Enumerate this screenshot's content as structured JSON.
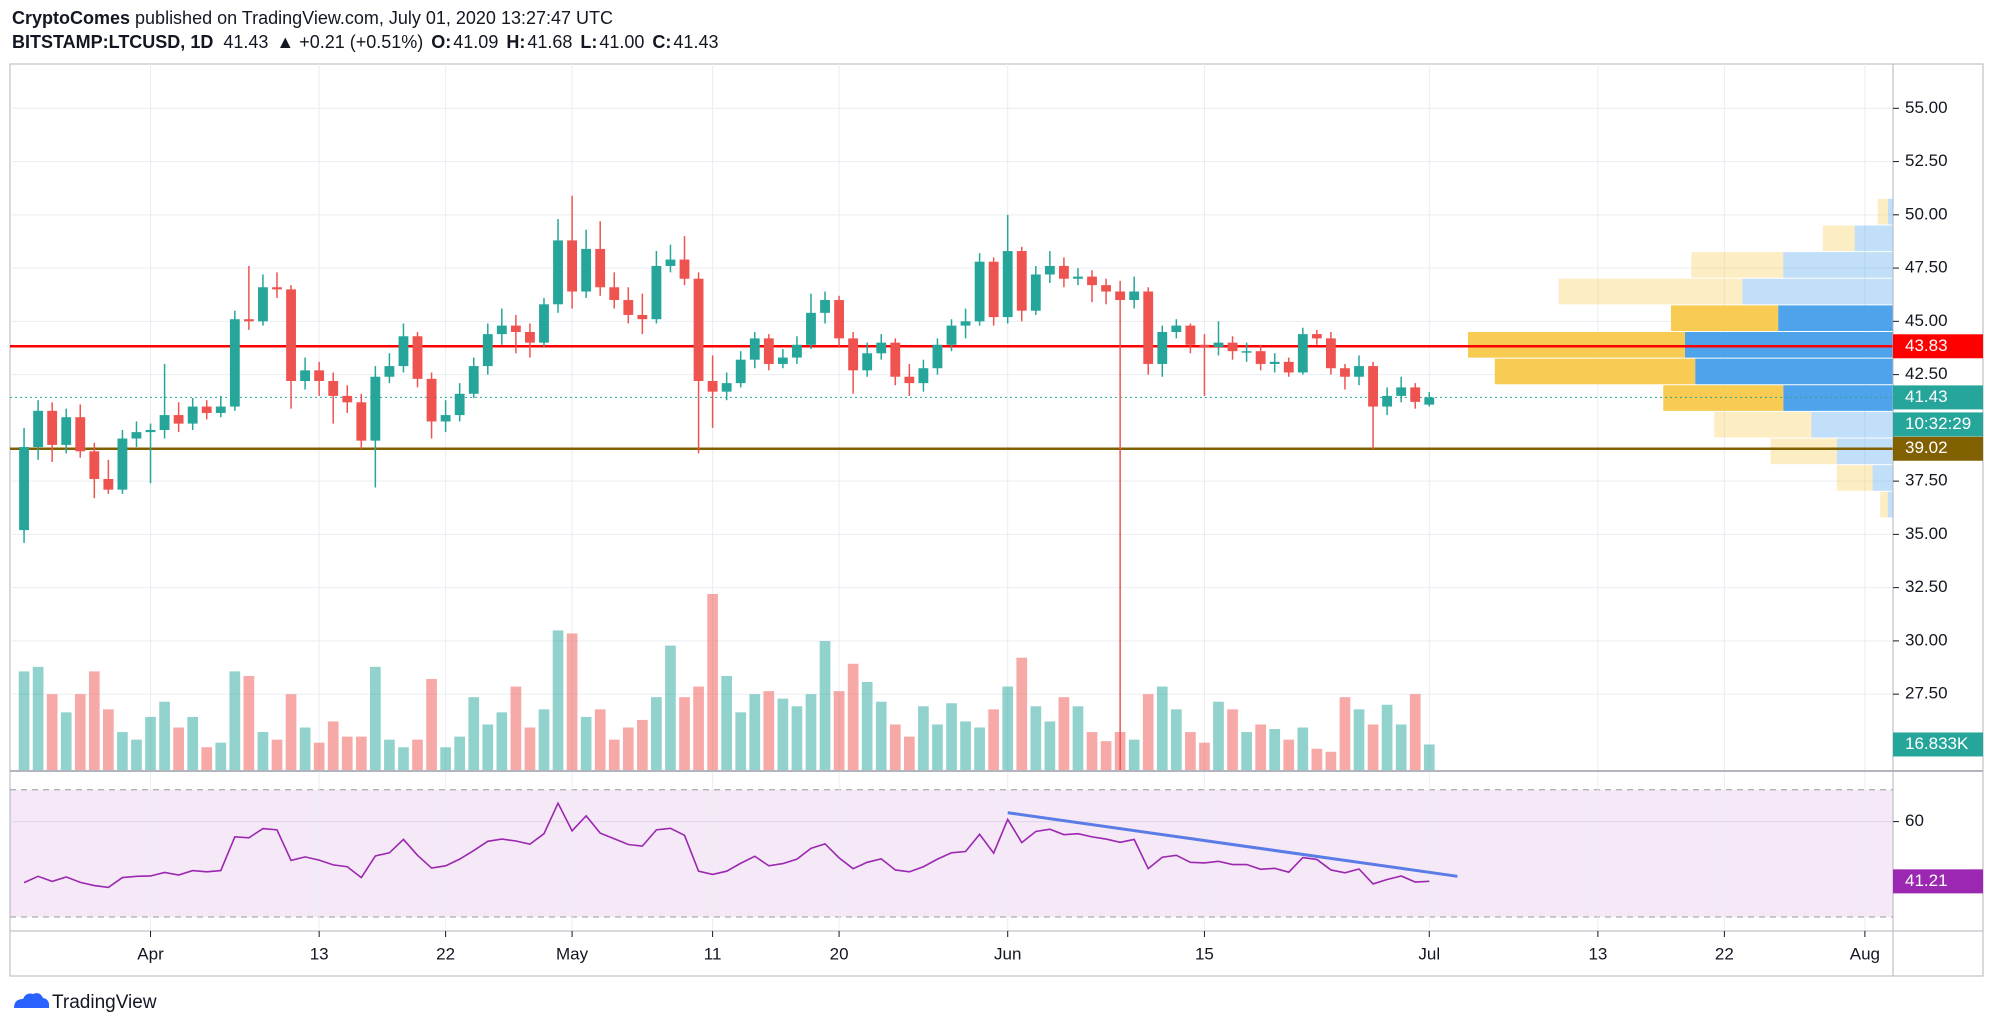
{
  "header": {
    "author": "CryptoComes",
    "published": "published on TradingView.com, July 01, 2020 13:27:47 UTC",
    "symbol": "BITSTAMP:LTCUSD, 1D",
    "last": "41.43",
    "change": "▲ +0.21 (+0.51%)",
    "ohlc": [
      {
        "key": "O:",
        "value": "41.09"
      },
      {
        "key": "H:",
        "value": "41.68"
      },
      {
        "key": "L:",
        "value": "41.00"
      },
      {
        "key": "C:",
        "value": "41.43"
      }
    ]
  },
  "footer": "TradingView",
  "chart_data": {
    "type": "candlestick",
    "x": [
      "2020-03-23",
      "2020-03-24",
      "2020-03-25",
      "2020-03-26",
      "2020-03-27",
      "2020-03-28",
      "2020-03-29",
      "2020-03-30",
      "2020-03-31",
      "2020-04-01",
      "2020-04-02",
      "2020-04-03",
      "2020-04-04",
      "2020-04-05",
      "2020-04-06",
      "2020-04-07",
      "2020-04-08",
      "2020-04-09",
      "2020-04-10",
      "2020-04-11",
      "2020-04-12",
      "2020-04-13",
      "2020-04-14",
      "2020-04-15",
      "2020-04-16",
      "2020-04-17",
      "2020-04-18",
      "2020-04-19",
      "2020-04-20",
      "2020-04-21",
      "2020-04-22",
      "2020-04-23",
      "2020-04-24",
      "2020-04-25",
      "2020-04-26",
      "2020-04-27",
      "2020-04-28",
      "2020-04-29",
      "2020-04-30",
      "2020-05-01",
      "2020-05-02",
      "2020-05-03",
      "2020-05-04",
      "2020-05-05",
      "2020-05-06",
      "2020-05-07",
      "2020-05-08",
      "2020-05-09",
      "2020-05-10",
      "2020-05-11",
      "2020-05-12",
      "2020-05-13",
      "2020-05-14",
      "2020-05-15",
      "2020-05-16",
      "2020-05-17",
      "2020-05-18",
      "2020-05-19",
      "2020-05-20",
      "2020-05-21",
      "2020-05-22",
      "2020-05-23",
      "2020-05-24",
      "2020-05-25",
      "2020-05-26",
      "2020-05-27",
      "2020-05-28",
      "2020-05-29",
      "2020-05-30",
      "2020-05-31",
      "2020-06-01",
      "2020-06-02",
      "2020-06-03",
      "2020-06-04",
      "2020-06-05",
      "2020-06-06",
      "2020-06-07",
      "2020-06-08",
      "2020-06-09",
      "2020-06-10",
      "2020-06-11",
      "2020-06-12",
      "2020-06-13",
      "2020-06-14",
      "2020-06-15",
      "2020-06-16",
      "2020-06-17",
      "2020-06-18",
      "2020-06-19",
      "2020-06-20",
      "2020-06-21",
      "2020-06-22",
      "2020-06-23",
      "2020-06-24",
      "2020-06-25",
      "2020-06-26",
      "2020-06-27",
      "2020-06-28",
      "2020-06-29",
      "2020-06-30",
      "2020-07-01"
    ],
    "open": [
      35.2,
      39.1,
      40.8,
      39.2,
      40.5,
      38.9,
      37.6,
      37.1,
      39.5,
      39.8,
      39.9,
      40.6,
      40.2,
      41.0,
      40.7,
      41.0,
      45.1,
      45.0,
      46.6,
      46.5,
      42.2,
      42.7,
      42.2,
      41.5,
      41.2,
      39.4,
      42.4,
      42.9,
      44.3,
      42.3,
      40.3,
      40.6,
      41.6,
      42.9,
      44.4,
      44.8,
      44.5,
      44.0,
      45.8,
      48.8,
      46.4,
      48.4,
      46.6,
      46.0,
      45.3,
      45.1,
      47.6,
      47.9,
      47.0,
      42.2,
      41.7,
      42.1,
      43.2,
      44.2,
      43.0,
      43.3,
      43.9,
      45.4,
      46.0,
      44.2,
      42.7,
      43.5,
      44.0,
      42.4,
      42.1,
      42.8,
      43.9,
      44.8,
      45.0,
      47.8,
      45.2,
      48.3,
      45.5,
      47.2,
      47.6,
      47.0,
      47.1,
      46.7,
      46.4,
      46.0,
      46.4,
      43.0,
      44.5,
      44.8,
      43.9,
      43.8,
      44.0,
      43.6,
      43.6,
      43.0,
      43.1,
      42.6,
      44.4,
      44.2,
      42.8,
      42.4,
      42.9,
      41.0,
      41.5,
      41.9,
      41.09
    ],
    "high": [
      40.0,
      41.3,
      41.2,
      40.9,
      41.1,
      39.3,
      38.5,
      39.9,
      40.3,
      40.2,
      43.0,
      41.2,
      41.4,
      41.3,
      41.5,
      45.5,
      47.6,
      47.2,
      47.3,
      46.7,
      43.3,
      43.1,
      42.6,
      42.0,
      41.6,
      42.9,
      43.5,
      44.9,
      44.5,
      42.6,
      41.3,
      42.1,
      43.3,
      44.9,
      45.6,
      45.3,
      44.9,
      46.1,
      49.8,
      50.9,
      49.3,
      49.7,
      47.3,
      46.6,
      46.3,
      48.3,
      48.6,
      49.0,
      47.3,
      43.4,
      42.6,
      43.6,
      44.5,
      44.4,
      43.7,
      44.3,
      46.3,
      46.4,
      46.2,
      44.5,
      44.0,
      44.4,
      44.2,
      43.0,
      43.2,
      44.2,
      45.1,
      45.6,
      48.2,
      48.0,
      50.0,
      48.5,
      47.6,
      48.3,
      48.0,
      47.5,
      47.4,
      47.0,
      46.9,
      47.1,
      46.6,
      44.8,
      45.1,
      44.9,
      44.4,
      45.0,
      44.3,
      44.0,
      43.9,
      43.5,
      43.3,
      44.7,
      44.6,
      44.5,
      43.0,
      43.4,
      43.1,
      41.9,
      42.4,
      42.1,
      41.68
    ],
    "low": [
      34.6,
      38.5,
      38.4,
      38.8,
      38.6,
      36.7,
      36.9,
      36.9,
      39.1,
      37.4,
      39.5,
      39.8,
      39.9,
      40.4,
      40.5,
      40.8,
      44.6,
      44.8,
      46.1,
      40.9,
      41.8,
      41.5,
      40.2,
      40.7,
      39.0,
      37.2,
      42.1,
      42.6,
      41.9,
      39.5,
      39.8,
      40.3,
      41.4,
      42.5,
      43.9,
      43.5,
      43.3,
      43.8,
      45.4,
      45.6,
      46.1,
      46.2,
      45.6,
      44.9,
      44.4,
      44.9,
      47.3,
      46.7,
      38.8,
      40.0,
      41.3,
      41.9,
      42.8,
      42.7,
      42.8,
      43.0,
      43.7,
      44.9,
      43.8,
      41.6,
      42.4,
      43.2,
      42.0,
      41.5,
      41.7,
      42.5,
      43.6,
      44.2,
      44.8,
      44.8,
      44.9,
      45.0,
      45.3,
      46.8,
      46.6,
      46.7,
      45.9,
      45.8,
      23.9,
      45.6,
      42.5,
      42.4,
      44.2,
      43.5,
      41.5,
      43.4,
      43.2,
      43.1,
      42.7,
      42.6,
      42.4,
      42.5,
      43.9,
      42.5,
      41.8,
      42.0,
      39.0,
      40.6,
      41.2,
      40.9,
      41.0
    ],
    "close": [
      39.1,
      40.8,
      39.2,
      40.5,
      38.9,
      37.6,
      37.1,
      39.5,
      39.8,
      39.9,
      40.6,
      40.2,
      41.0,
      40.7,
      41.0,
      45.1,
      45.0,
      46.6,
      46.5,
      42.2,
      42.7,
      42.2,
      41.5,
      41.2,
      39.4,
      42.4,
      42.9,
      44.3,
      42.3,
      40.3,
      40.6,
      41.6,
      42.9,
      44.4,
      44.8,
      44.5,
      44.0,
      45.8,
      48.8,
      46.4,
      48.4,
      46.6,
      46.0,
      45.3,
      45.1,
      47.6,
      47.9,
      47.0,
      42.2,
      41.7,
      42.1,
      43.2,
      44.2,
      43.0,
      43.3,
      43.9,
      45.4,
      46.0,
      44.2,
      42.7,
      43.5,
      44.0,
      42.4,
      42.1,
      42.8,
      43.9,
      44.8,
      45.0,
      47.8,
      45.2,
      48.3,
      45.5,
      47.2,
      47.6,
      47.0,
      47.1,
      46.7,
      46.4,
      46.0,
      46.4,
      43.0,
      44.5,
      44.8,
      43.9,
      43.8,
      44.0,
      43.6,
      43.6,
      43.0,
      43.1,
      42.6,
      44.4,
      44.2,
      42.8,
      42.4,
      42.9,
      41.0,
      41.5,
      41.9,
      41.22,
      41.43
    ],
    "up_color": "#26a69a",
    "down_color": "#ef5350",
    "xlim": [
      "2020-03-22",
      "2020-08-03"
    ],
    "xticks": [
      {
        "value": "2020-04-01",
        "label": "Apr"
      },
      {
        "value": "2020-04-13",
        "label": "13"
      },
      {
        "value": "2020-04-22",
        "label": "22"
      },
      {
        "value": "2020-05-01",
        "label": "May"
      },
      {
        "value": "2020-05-11",
        "label": "11"
      },
      {
        "value": "2020-05-20",
        "label": "20"
      },
      {
        "value": "2020-06-01",
        "label": "Jun"
      },
      {
        "value": "2020-06-15",
        "label": "15"
      },
      {
        "value": "2020-07-01",
        "label": "Jul"
      },
      {
        "value": "2020-07-13",
        "label": "13"
      },
      {
        "value": "2020-07-22",
        "label": "22"
      },
      {
        "value": "2020-08-01",
        "label": "Aug"
      }
    ],
    "ylim": [
      23.94,
      57.08
    ],
    "yticks": [
      {
        "value": 27.5,
        "label": "27.50"
      },
      {
        "value": 30,
        "label": "30.00"
      },
      {
        "value": 32.5,
        "label": "32.50"
      },
      {
        "value": 35,
        "label": "35.00"
      },
      {
        "value": 37.5,
        "label": "37.50"
      },
      {
        "value": 42.5,
        "label": "42.50"
      },
      {
        "value": 45,
        "label": "45.00"
      },
      {
        "value": 47.5,
        "label": "47.50"
      },
      {
        "value": 50,
        "label": "50.00"
      },
      {
        "value": 52.5,
        "label": "52.50"
      },
      {
        "value": 55,
        "label": "55.00"
      }
    ],
    "grid": true,
    "countdown": "10:32:29",
    "levels": [
      {
        "value": 43.83,
        "color": "#ff0000"
      },
      {
        "value": 39.02,
        "color": "#806000"
      }
    ],
    "volume": {
      "values": [
        65000,
        68000,
        50000,
        38000,
        50000,
        65000,
        40000,
        25000,
        20000,
        35000,
        45000,
        28000,
        35000,
        15000,
        18000,
        65000,
        62000,
        25000,
        20000,
        50000,
        28000,
        18000,
        32000,
        22000,
        22000,
        68000,
        20000,
        15000,
        20000,
        60000,
        15000,
        22000,
        48000,
        30000,
        38000,
        55000,
        28000,
        40000,
        92000,
        90000,
        35000,
        40000,
        20000,
        28000,
        33000,
        48000,
        82000,
        48000,
        55000,
        116000,
        62000,
        38000,
        50000,
        52000,
        47000,
        42000,
        50000,
        85000,
        52000,
        70000,
        58000,
        45000,
        30000,
        22000,
        42000,
        30000,
        44000,
        32000,
        28000,
        40000,
        55000,
        74000,
        42000,
        32000,
        48000,
        42000,
        25000,
        19000,
        25000,
        20000,
        50000,
        55000,
        40000,
        25000,
        18000,
        45000,
        40000,
        25000,
        30000,
        27000,
        20000,
        28000,
        14000,
        12000,
        48000,
        40000,
        30000,
        43000,
        30000,
        50000,
        16833
      ],
      "last_label": "16.833K"
    },
    "volume_profile": {
      "up_color": "#4ea3ea",
      "down_color": "#f8cb52",
      "rows": [
        {
          "low": 35.75,
          "high": 37.0,
          "up": 4,
          "down": 6,
          "value_area": false
        },
        {
          "low": 37.0,
          "high": 38.25,
          "up": 16,
          "down": 28,
          "value_area": false
        },
        {
          "low": 38.25,
          "high": 39.5,
          "up": 44,
          "down": 52,
          "value_area": false
        },
        {
          "low": 39.5,
          "high": 40.75,
          "up": 64,
          "down": 76,
          "value_area": false
        },
        {
          "low": 40.75,
          "high": 42.0,
          "up": 86,
          "down": 94,
          "value_area": true
        },
        {
          "low": 42.0,
          "high": 43.25,
          "up": 155,
          "down": 157,
          "value_area": true
        },
        {
          "low": 43.25,
          "high": 44.5,
          "up": 163,
          "down": 170,
          "value_area": true
        },
        {
          "low": 44.5,
          "high": 45.75,
          "up": 90,
          "down": 84,
          "value_area": true
        },
        {
          "low": 45.75,
          "high": 47.0,
          "up": 118,
          "down": 144,
          "value_area": false
        },
        {
          "low": 47.0,
          "high": 48.25,
          "up": 86,
          "down": 72,
          "value_area": false
        },
        {
          "low": 48.25,
          "high": 49.5,
          "up": 30,
          "down": 25,
          "value_area": false
        },
        {
          "low": 49.5,
          "high": 50.75,
          "up": 4,
          "down": 8,
          "value_area": false
        }
      ]
    },
    "rsi": {
      "color": "#9c27b0",
      "ylim": [
        25.6,
        75.6
      ],
      "yticks": [
        60
      ],
      "bands": [
        30,
        70
      ],
      "values": [
        40.8,
        42.8,
        41.2,
        42.6,
        40.9,
        39.9,
        39.3,
        42.4,
        42.8,
        42.9,
        44.0,
        43.2,
        44.6,
        44.2,
        44.6,
        55.2,
        54.9,
        57.8,
        57.4,
        47.8,
        48.9,
        47.9,
        46.4,
        45.8,
        42.4,
        49.2,
        50.2,
        54.4,
        49.4,
        45.4,
        46.1,
        48.2,
        50.9,
        53.8,
        54.5,
        53.9,
        52.9,
        56.2,
        65.8,
        57.1,
        61.8,
        56.4,
        54.6,
        52.8,
        52.3,
        57.4,
        57.9,
        55.7,
        44.4,
        43.4,
        44.4,
        46.9,
        49.1,
        46.1,
        46.8,
        48.2,
        51.6,
        53.0,
        48.6,
        45.2,
        47.2,
        48.3,
        44.8,
        44.2,
        45.8,
        48.2,
        50.2,
        50.6,
        56.0,
        50.1,
        60.7,
        53.4,
        56.9,
        57.6,
        55.9,
        56.2,
        55.2,
        54.5,
        53.5,
        54.4,
        45.2,
        48.8,
        49.4,
        47.2,
        47.0,
        47.5,
        46.5,
        46.5,
        45.0,
        45.3,
        44.1,
        48.7,
        48.1,
        44.8,
        43.9,
        45.1,
        40.4,
        41.8,
        42.9,
        41.0,
        41.21
      ],
      "trendline": {
        "x": [
          "2020-06-01",
          "2020-07-03"
        ],
        "y": [
          62.8,
          42.8
        ],
        "color": "#5b7be6"
      }
    }
  }
}
